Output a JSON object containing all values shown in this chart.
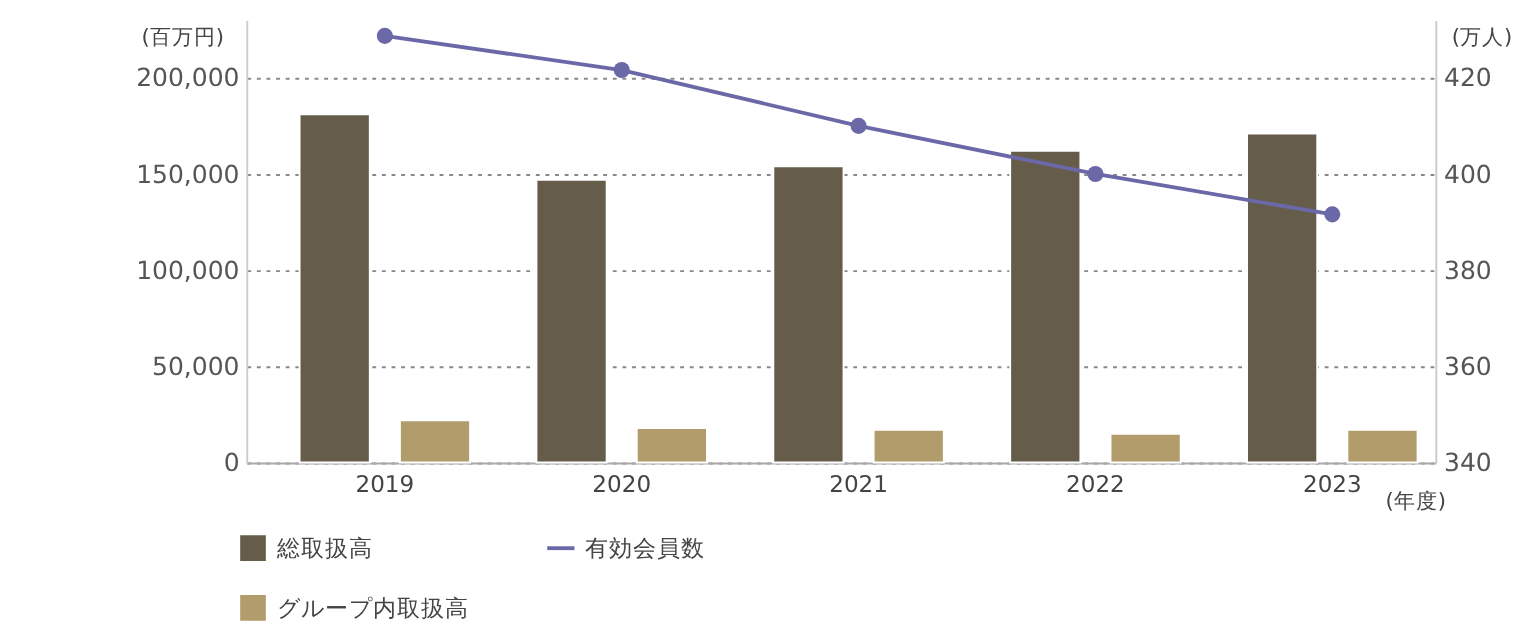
{
  "chart_data": {
    "type": "bar",
    "categories": [
      "2019",
      "2020",
      "2021",
      "2022",
      "2023"
    ],
    "xlabel": "(年度)",
    "ylabel": "(百万円)",
    "y2label": "(万人)",
    "ylim": [
      0,
      230000
    ],
    "yticks": [
      0,
      {
        "value": 50000,
        "label": "50,000"
      },
      {
        "value": 100000,
        "label": "100,000"
      },
      {
        "value": 150000,
        "label": "150,000"
      },
      {
        "value": 200000,
        "label": "200,000"
      }
    ],
    "y2lim": [
      340,
      432
    ],
    "y2ticks": [
      340,
      360,
      380,
      400,
      420
    ],
    "grid": "y",
    "legend": "bottom left",
    "marker": "circle",
    "line_style": "solid",
    "series": [
      {
        "name": "総取扱高",
        "color": "#655c4a",
        "values": [
          181000,
          147000,
          154000,
          162000,
          171000
        ]
      },
      {
        "name": "グループ内取扱高",
        "color": "#b39c6c",
        "values": [
          22000,
          18000,
          17000,
          15000,
          17000
        ]
      },
      {
        "name": "有効会員数",
        "type": "line",
        "axis": "y2",
        "color": "#6b68a8",
        "values": [
          428.7,
          421.6,
          410,
          400,
          391.6
        ]
      }
    ]
  }
}
